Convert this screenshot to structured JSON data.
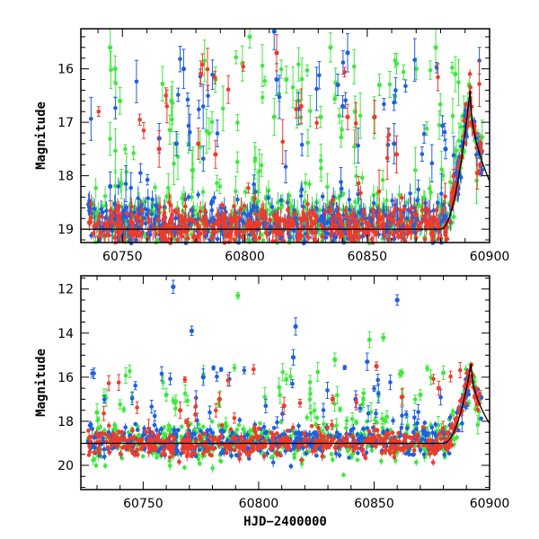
{
  "chart_data": [
    {
      "type": "scatter",
      "title": "",
      "xlabel": "",
      "ylabel": "Magnitude",
      "xlim": [
        60733,
        60900
      ],
      "ylim": [
        19.25,
        15.25
      ],
      "y_inverted": true,
      "x_ticks": [
        60750,
        60800,
        60850,
        60900
      ],
      "y_ticks": [
        16,
        17,
        18,
        19
      ],
      "grid": false,
      "colors": {
        "green": "#3ee83e",
        "blue": "#1f5fe0",
        "red": "#f03a2a",
        "model": "#000000"
      },
      "series": [
        {
          "color": "green",
          "baseline": 18.85,
          "scatter": 0.28,
          "outlier_rate": 0.16,
          "outlier_points": [
            [
              60745,
              15.6
            ],
            [
              60747,
              16.0
            ],
            [
              60749,
              16.6
            ],
            [
              60770,
              16.6
            ],
            [
              60788,
              16.2
            ],
            [
              60799,
              15.9
            ],
            [
              60802,
              15.4
            ],
            [
              60812,
              16.9
            ],
            [
              60817,
              16.2
            ],
            [
              60822,
              16.6
            ],
            [
              60831,
              16.9
            ],
            [
              60835,
              15.6
            ],
            [
              60845,
              16.8
            ],
            [
              60855,
              16.3
            ],
            [
              60862,
              15.9
            ],
            [
              60870,
              16.0
            ],
            [
              60878,
              15.6
            ],
            [
              60886,
              16.1
            ]
          ]
        },
        {
          "color": "blue",
          "baseline": 18.9,
          "scatter": 0.22,
          "outlier_rate": 0.09,
          "outlier_points": [
            [
              60745,
              18.2
            ],
            [
              60765,
              17.3
            ],
            [
              60772,
              17.4
            ],
            [
              60775,
              16.0
            ],
            [
              60812,
              15.3
            ],
            [
              60813,
              16.2
            ],
            [
              60838,
              16.3
            ],
            [
              60840,
              16.7
            ],
            [
              60842,
              15.7
            ],
            [
              60861,
              17.4
            ],
            [
              60882,
              17.5
            ]
          ]
        },
        {
          "color": "red",
          "baseline": 18.95,
          "scatter": 0.2,
          "outlier_rate": 0.05,
          "outlier_points": [
            [
              60765,
              17.5
            ],
            [
              60781,
              17.4
            ],
            [
              60788,
              17.6
            ],
            [
              60813,
              15.7
            ],
            [
              60823,
              16.7
            ],
            [
              60842,
              16.9
            ],
            [
              60853,
              16.9
            ],
            [
              60862,
              17.6
            ]
          ]
        }
      ],
      "flare": {
        "start": 60880,
        "peak": 60892,
        "peak_mag": 16.4,
        "end": 60900
      }
    },
    {
      "type": "scatter",
      "title": "",
      "xlabel": "HJD−2400000",
      "ylabel": "Magnitude",
      "xlim": [
        60723,
        60900
      ],
      "ylim": [
        21.1,
        11.4
      ],
      "y_inverted": true,
      "x_ticks": [
        60750,
        60800,
        60850,
        60900
      ],
      "y_ticks": [
        12,
        14,
        16,
        18,
        20
      ],
      "grid": false,
      "colors": {
        "green": "#3ee83e",
        "blue": "#1f5fe0",
        "red": "#f03a2a",
        "model": "#000000"
      },
      "series": [
        {
          "color": "green",
          "baseline": 18.9,
          "scatter": 0.45,
          "outlier_rate": 0.12,
          "outlier_points": [
            [
              60730,
              17.6
            ],
            [
              60760,
              16.8
            ],
            [
              60791,
              12.3
            ],
            [
              60812,
              16.1
            ],
            [
              60833,
              15.2
            ],
            [
              60848,
              14.3
            ],
            [
              60854,
              14.2
            ],
            [
              60862,
              15.8
            ],
            [
              60870,
              16.8
            ],
            [
              60880,
              15.8
            ]
          ]
        },
        {
          "color": "blue",
          "baseline": 18.9,
          "scatter": 0.35,
          "outlier_rate": 0.08,
          "outlier_points": [
            [
              60763,
              11.9
            ],
            [
              60771,
              13.9
            ],
            [
              60776,
              16.0
            ],
            [
              60816,
              13.7
            ],
            [
              60815,
              15.1
            ],
            [
              60847,
              15.3
            ],
            [
              60860,
              12.5
            ],
            [
              60842,
              17.0
            ]
          ]
        },
        {
          "color": "red",
          "baseline": 19.0,
          "scatter": 0.3,
          "outlier_rate": 0.05,
          "outlier_points": [
            [
              60766,
              17.5
            ],
            [
              60783,
              17.0
            ],
            [
              60811,
              17.3
            ],
            [
              60832,
              17.0
            ],
            [
              60851,
              15.5
            ],
            [
              60862,
              16.9
            ],
            [
              60878,
              16.5
            ]
          ]
        }
      ],
      "flare": {
        "start": 60880,
        "peak": 60892,
        "peak_mag": 15.4,
        "end": 60900
      }
    }
  ]
}
